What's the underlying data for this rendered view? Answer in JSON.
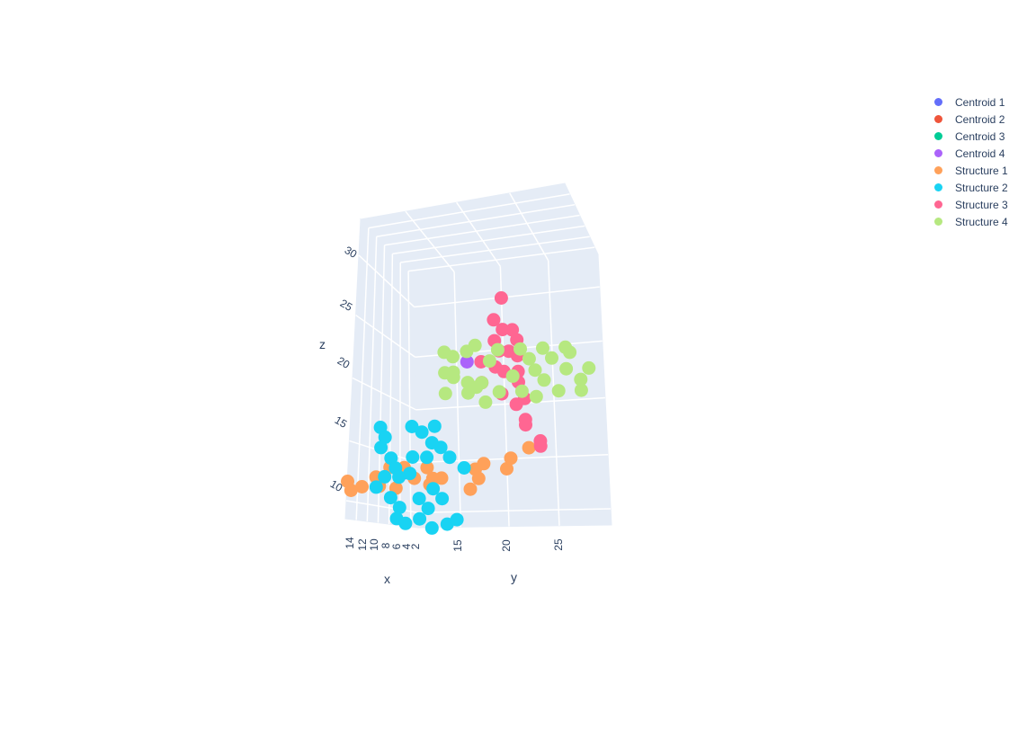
{
  "chart_data": {
    "type": "scatter3d",
    "axes": {
      "x": {
        "title": "x",
        "ticks": [
          "14",
          "12",
          "10",
          "8",
          "6",
          "4",
          "2"
        ]
      },
      "y": {
        "title": "y",
        "ticks": [
          "15",
          "20",
          "25"
        ]
      },
      "z": {
        "title": "z",
        "ticks": [
          "30",
          "25",
          "20",
          "15",
          "10"
        ]
      }
    },
    "legend_position": "top-right",
    "series": [
      {
        "name": "Centroid 1",
        "color": "#636efa",
        "points": [
          [
            9,
            14,
            13.5
          ]
        ]
      },
      {
        "name": "Centroid 2",
        "color": "#EF553B",
        "points": []
      },
      {
        "name": "Centroid 3",
        "color": "#00cc96",
        "points": []
      },
      {
        "name": "Centroid 4",
        "color": "#ab63fa",
        "points": [
          [
            8,
            21,
            24
          ]
        ]
      },
      {
        "name": "Structure 1",
        "color": "#FFA15A",
        "points": [
          [
            13,
            10,
            12.5
          ],
          [
            12,
            11,
            12
          ],
          [
            14,
            11,
            11.5
          ],
          [
            11,
            12,
            13
          ],
          [
            12,
            13,
            12
          ],
          [
            10,
            13,
            14
          ],
          [
            9,
            14,
            14
          ],
          [
            8,
            14.5,
            13
          ],
          [
            8,
            16,
            14
          ],
          [
            7,
            16,
            13
          ],
          [
            9,
            13,
            12
          ],
          [
            7,
            17,
            13
          ],
          [
            5,
            19,
            12
          ],
          [
            4,
            19,
            14
          ],
          [
            5,
            20,
            13
          ],
          [
            3,
            22,
            14
          ],
          [
            3,
            22.5,
            15
          ],
          [
            2,
            24,
            16
          ],
          [
            4,
            20,
            14.5
          ],
          [
            6,
            15,
            12.5
          ]
        ]
      },
      {
        "name": "Structure 2",
        "color": "#19d3f3",
        "points": [
          [
            10,
            12,
            18
          ],
          [
            10,
            12.5,
            17
          ],
          [
            10,
            12,
            16
          ],
          [
            9,
            12.5,
            15
          ],
          [
            9,
            13,
            14
          ],
          [
            11,
            13,
            13
          ],
          [
            8,
            14,
            13.5
          ],
          [
            10,
            13,
            11
          ],
          [
            10,
            14,
            10
          ],
          [
            9,
            13,
            9
          ],
          [
            9,
            14,
            8.5
          ],
          [
            8,
            15,
            9
          ],
          [
            8,
            16,
            10
          ],
          [
            7,
            17,
            11
          ],
          [
            7,
            16,
            12
          ],
          [
            8,
            15,
            11
          ],
          [
            7,
            17.5,
            8.5
          ],
          [
            6,
            18,
            9
          ],
          [
            9,
            15,
            18
          ],
          [
            8,
            15.5,
            17.5
          ],
          [
            8,
            17,
            18
          ],
          [
            7,
            17,
            16
          ],
          [
            7,
            18,
            15
          ],
          [
            6,
            19,
            14
          ],
          [
            9,
            15,
            15
          ],
          [
            10,
            14,
            13
          ],
          [
            11,
            12,
            12
          ],
          [
            8,
            16,
            15
          ],
          [
            7,
            16,
            16.5
          ],
          [
            9,
            17,
            8
          ]
        ]
      },
      {
        "name": "Structure 3",
        "color": "#FF6692",
        "points": [
          [
            6,
            24,
            30
          ],
          [
            6,
            23,
            28
          ],
          [
            6,
            24,
            27
          ],
          [
            5,
            24.5,
            27
          ],
          [
            5,
            25,
            26
          ],
          [
            6,
            23,
            26
          ],
          [
            6,
            23.5,
            25
          ],
          [
            5,
            24,
            25
          ],
          [
            5,
            25,
            24.5
          ],
          [
            7,
            22,
            24
          ],
          [
            6,
            23,
            23.5
          ],
          [
            6,
            24,
            23
          ],
          [
            5,
            25,
            22
          ],
          [
            5,
            23,
            21
          ],
          [
            4,
            24,
            20
          ],
          [
            4,
            25,
            20.5
          ],
          [
            4,
            25,
            18.5
          ],
          [
            4,
            25,
            18
          ],
          [
            3,
            26,
            16.5
          ],
          [
            3,
            26,
            16
          ],
          [
            7,
            22,
            22
          ],
          [
            5,
            25,
            23
          ]
        ]
      },
      {
        "name": "Structure 4",
        "color": "#B6E880",
        "points": [
          [
            9,
            19,
            25
          ],
          [
            9,
            20,
            24.5
          ],
          [
            8,
            21,
            25
          ],
          [
            9,
            19,
            23
          ],
          [
            9,
            20,
            23
          ],
          [
            8,
            21,
            22
          ],
          [
            9,
            19,
            21
          ],
          [
            8,
            21,
            21
          ],
          [
            8,
            22,
            21.5
          ],
          [
            7,
            22,
            22
          ],
          [
            7,
            23,
            24
          ],
          [
            7,
            24,
            25
          ],
          [
            6,
            26,
            25
          ],
          [
            6,
            27,
            24
          ],
          [
            5,
            28,
            25
          ],
          [
            5,
            29,
            24
          ],
          [
            4,
            30,
            25
          ],
          [
            4,
            30.5,
            24.5
          ],
          [
            4,
            30,
            23
          ],
          [
            5,
            28,
            22
          ],
          [
            4,
            29,
            21
          ],
          [
            3,
            31,
            22
          ],
          [
            3,
            31,
            21
          ],
          [
            5,
            27,
            20.5
          ],
          [
            6,
            26,
            21
          ],
          [
            6,
            25,
            22.5
          ],
          [
            7,
            24,
            21
          ],
          [
            8,
            22,
            25.5
          ],
          [
            9,
            20,
            22.5
          ],
          [
            8,
            23,
            20
          ],
          [
            5,
            27,
            23
          ],
          [
            3,
            32,
            23
          ]
        ]
      }
    ]
  }
}
